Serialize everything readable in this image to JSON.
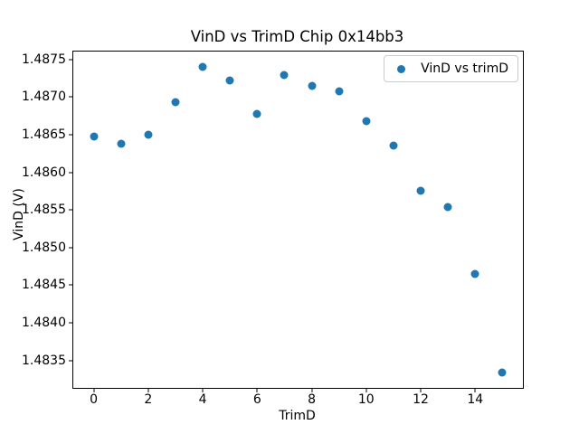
{
  "figure": {
    "background": "#ffffff",
    "text_color": "#000000"
  },
  "chart_data": {
    "type": "scatter",
    "title": "VinD vs TrimD Chip 0x14bb3",
    "xlabel": "TrimD",
    "ylabel": "VinD (V)",
    "grid": false,
    "legend": {
      "visible": true,
      "position": "upper right",
      "border_color": "#cccccc"
    },
    "xlim": [
      -0.75,
      15.75
    ],
    "ylim": [
      1.483137,
      1.487603
    ],
    "xticks": [
      0,
      2,
      4,
      6,
      8,
      10,
      12,
      14
    ],
    "yticks": [
      1.4835,
      1.484,
      1.4845,
      1.485,
      1.4855,
      1.486,
      1.4865,
      1.487,
      1.4875
    ],
    "ytick_decimals": 4,
    "series": [
      {
        "name": "VinD vs trimD",
        "color": "#1f77b4",
        "x": [
          0,
          1,
          2,
          3,
          4,
          5,
          6,
          7,
          8,
          9,
          10,
          11,
          12,
          13,
          14,
          15
        ],
        "y": [
          1.48648,
          1.48638,
          1.4865,
          1.48693,
          1.4874,
          1.48722,
          1.48677,
          1.48729,
          1.48715,
          1.48707,
          1.48668,
          1.48636,
          1.48575,
          1.48554,
          1.48465,
          1.48334
        ]
      }
    ]
  }
}
